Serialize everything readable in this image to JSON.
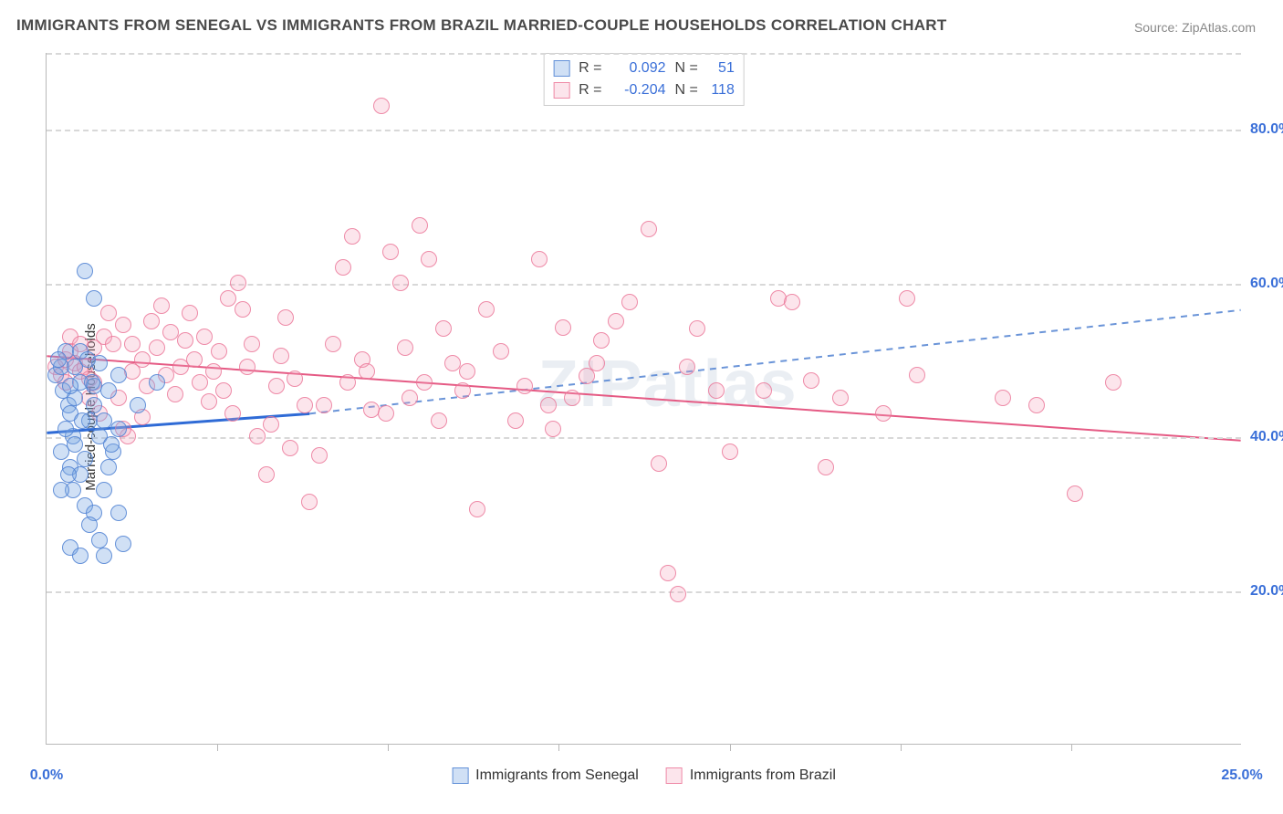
{
  "title": "IMMIGRANTS FROM SENEGAL VS IMMIGRANTS FROM BRAZIL MARRIED-COUPLE HOUSEHOLDS CORRELATION CHART",
  "source": "Source: ZipAtlas.com",
  "ylabel": "Married-couple Households",
  "watermark": "ZIPatlas",
  "chart": {
    "type": "scatter-with-trend",
    "xlim": [
      0,
      25
    ],
    "ylim": [
      0,
      90
    ],
    "x_ticks": [
      0,
      25
    ],
    "x_tick_labels": [
      "0.0%",
      "25.0%"
    ],
    "x_minor_ticks": [
      3.57,
      7.14,
      10.71,
      14.29,
      17.86,
      21.43
    ],
    "y_ticks": [
      20,
      40,
      60,
      80
    ],
    "y_tick_labels": [
      "20.0%",
      "40.0%",
      "60.0%",
      "80.0%"
    ],
    "background_color": "#ffffff",
    "grid_color": "#d8d8d8",
    "axis_color": "#b8b8b8",
    "tick_label_color": "#3a6fd8",
    "point_radius": 9,
    "series": [
      {
        "name": "Immigrants from Senegal",
        "color_fill": "rgba(120,165,225,0.35)",
        "color_stroke": "rgba(80,130,210,0.85)",
        "R": "0.092",
        "N": "51",
        "trend": {
          "x1": 0,
          "y1": 40.5,
          "x2": 5.5,
          "y2": 43.0,
          "dash_x2": 25,
          "dash_y2": 56.5,
          "solid_color": "#2f6bd6",
          "dash_color": "#6a94d8",
          "width": 2
        },
        "points": [
          [
            0.2,
            48
          ],
          [
            0.3,
            49
          ],
          [
            0.4,
            51
          ],
          [
            0.35,
            46
          ],
          [
            0.45,
            44
          ],
          [
            0.25,
            50
          ],
          [
            0.5,
            43
          ],
          [
            0.55,
            40
          ],
          [
            0.3,
            38
          ],
          [
            0.4,
            41
          ],
          [
            0.6,
            45
          ],
          [
            0.7,
            47
          ],
          [
            0.5,
            36
          ],
          [
            0.55,
            33
          ],
          [
            0.7,
            35
          ],
          [
            0.8,
            37
          ],
          [
            0.9,
            42
          ],
          [
            1.0,
            44
          ],
          [
            1.1,
            40
          ],
          [
            0.8,
            31
          ],
          [
            1.0,
            30
          ],
          [
            1.2,
            33
          ],
          [
            1.3,
            36
          ],
          [
            1.4,
            38
          ],
          [
            1.5,
            41
          ],
          [
            1.3,
            46
          ],
          [
            1.5,
            48
          ],
          [
            1.0,
            46.5
          ],
          [
            1.1,
            49.5
          ],
          [
            0.5,
            46.5
          ],
          [
            0.6,
            49
          ],
          [
            0.7,
            51
          ],
          [
            0.85,
            50
          ],
          [
            0.95,
            47
          ],
          [
            0.3,
            33
          ],
          [
            0.45,
            35
          ],
          [
            0.6,
            39
          ],
          [
            0.75,
            42
          ],
          [
            1.2,
            42
          ],
          [
            1.35,
            39
          ],
          [
            1.0,
            58
          ],
          [
            0.8,
            61.5
          ],
          [
            1.6,
            26
          ],
          [
            1.1,
            26.5
          ],
          [
            0.9,
            28.5
          ],
          [
            0.5,
            25.5
          ],
          [
            1.9,
            44
          ],
          [
            2.3,
            47
          ],
          [
            0.7,
            24.5
          ],
          [
            1.2,
            24.5
          ],
          [
            1.5,
            30
          ]
        ]
      },
      {
        "name": "Immigrants from Brazil",
        "color_fill": "rgba(245,160,185,0.28)",
        "color_stroke": "rgba(235,115,150,0.8)",
        "R": "-0.204",
        "N": "118",
        "trend": {
          "x1": 0,
          "y1": 50.5,
          "x2": 25,
          "y2": 39.5,
          "solid_color": "#e55a84",
          "width": 2
        },
        "points": [
          [
            0.2,
            49
          ],
          [
            0.3,
            48
          ],
          [
            0.4,
            50
          ],
          [
            0.5,
            51
          ],
          [
            0.6,
            49.5
          ],
          [
            0.7,
            48.5
          ],
          [
            0.8,
            49
          ],
          [
            0.9,
            47.5
          ],
          [
            1.0,
            51.5
          ],
          [
            1.2,
            53
          ],
          [
            1.4,
            52
          ],
          [
            1.6,
            54.5
          ],
          [
            1.8,
            52
          ],
          [
            2.0,
            50
          ],
          [
            2.2,
            55
          ],
          [
            2.4,
            57
          ],
          [
            2.6,
            53.5
          ],
          [
            2.8,
            49
          ],
          [
            3.0,
            56
          ],
          [
            3.2,
            47
          ],
          [
            3.4,
            44.5
          ],
          [
            3.6,
            51
          ],
          [
            3.8,
            58
          ],
          [
            4.0,
            60
          ],
          [
            4.2,
            49
          ],
          [
            4.4,
            40
          ],
          [
            4.6,
            35
          ],
          [
            4.8,
            46.5
          ],
          [
            5.0,
            55.5
          ],
          [
            5.2,
            47.5
          ],
          [
            5.4,
            44
          ],
          [
            5.5,
            31.5
          ],
          [
            5.7,
            37.5
          ],
          [
            6.0,
            52
          ],
          [
            6.2,
            62
          ],
          [
            6.4,
            66
          ],
          [
            6.6,
            50
          ],
          [
            6.8,
            43.5
          ],
          [
            7.0,
            83
          ],
          [
            7.2,
            64
          ],
          [
            7.4,
            60
          ],
          [
            7.6,
            45
          ],
          [
            7.8,
            67.5
          ],
          [
            8.0,
            63
          ],
          [
            8.2,
            42
          ],
          [
            8.5,
            49.5
          ],
          [
            8.7,
            46
          ],
          [
            9.0,
            30.5
          ],
          [
            9.2,
            56.5
          ],
          [
            10.0,
            46.5
          ],
          [
            10.3,
            63
          ],
          [
            10.5,
            44
          ],
          [
            10.8,
            54.2
          ],
          [
            11.0,
            45
          ],
          [
            11.3,
            47.8
          ],
          [
            11.6,
            52.5
          ],
          [
            11.9,
            55
          ],
          [
            12.2,
            57.5
          ],
          [
            12.6,
            67
          ],
          [
            12.8,
            36.5
          ],
          [
            13.0,
            22.2
          ],
          [
            13.2,
            19.5
          ],
          [
            13.4,
            49
          ],
          [
            13.6,
            54
          ],
          [
            14.0,
            46
          ],
          [
            14.3,
            38
          ],
          [
            15.0,
            46
          ],
          [
            15.3,
            58
          ],
          [
            15.6,
            57.5
          ],
          [
            16.0,
            47.2
          ],
          [
            16.3,
            36
          ],
          [
            16.6,
            45
          ],
          [
            17.5,
            43
          ],
          [
            18.0,
            58
          ],
          [
            18.2,
            48
          ],
          [
            20.0,
            45
          ],
          [
            20.7,
            44
          ],
          [
            21.5,
            32.5
          ],
          [
            22.3,
            47
          ],
          [
            1.0,
            47
          ],
          [
            1.5,
            45
          ],
          [
            1.8,
            48.5
          ],
          [
            2.1,
            46.5
          ],
          [
            2.5,
            48
          ],
          [
            2.7,
            45.5
          ],
          [
            3.1,
            50
          ],
          [
            3.3,
            53
          ],
          [
            3.5,
            48.5
          ],
          [
            3.9,
            43
          ],
          [
            4.3,
            52
          ],
          [
            4.7,
            41.5
          ],
          [
            5.1,
            38.5
          ],
          [
            5.8,
            44
          ],
          [
            6.3,
            47
          ],
          [
            6.7,
            48.5
          ],
          [
            7.1,
            43
          ],
          [
            7.5,
            51.5
          ],
          [
            7.9,
            47
          ],
          [
            8.3,
            54
          ],
          [
            8.8,
            48.5
          ],
          [
            9.5,
            51
          ],
          [
            9.8,
            42
          ],
          [
            10.6,
            41
          ],
          [
            11.5,
            49.5
          ],
          [
            1.3,
            56
          ],
          [
            1.7,
            40
          ],
          [
            0.5,
            53
          ],
          [
            0.7,
            52
          ],
          [
            2.3,
            51.5
          ],
          [
            2.9,
            52.5
          ],
          [
            3.7,
            46
          ],
          [
            4.1,
            56.5
          ],
          [
            4.9,
            50.5
          ],
          [
            0.4,
            47
          ],
          [
            0.9,
            45
          ],
          [
            1.1,
            43
          ],
          [
            1.6,
            41
          ],
          [
            2.0,
            42.5
          ]
        ]
      }
    ],
    "legend_top": {
      "rows": [
        {
          "swatch": "blue",
          "R_label": "R =",
          "R_value": "0.092",
          "N_label": "N =",
          "N_value": "51"
        },
        {
          "swatch": "pink",
          "R_label": "R =",
          "R_value": "-0.204",
          "N_label": "N =",
          "N_value": "118"
        }
      ]
    },
    "legend_bottom": [
      {
        "swatch": "blue",
        "label": "Immigrants from Senegal"
      },
      {
        "swatch": "pink",
        "label": "Immigrants from Brazil"
      }
    ]
  }
}
